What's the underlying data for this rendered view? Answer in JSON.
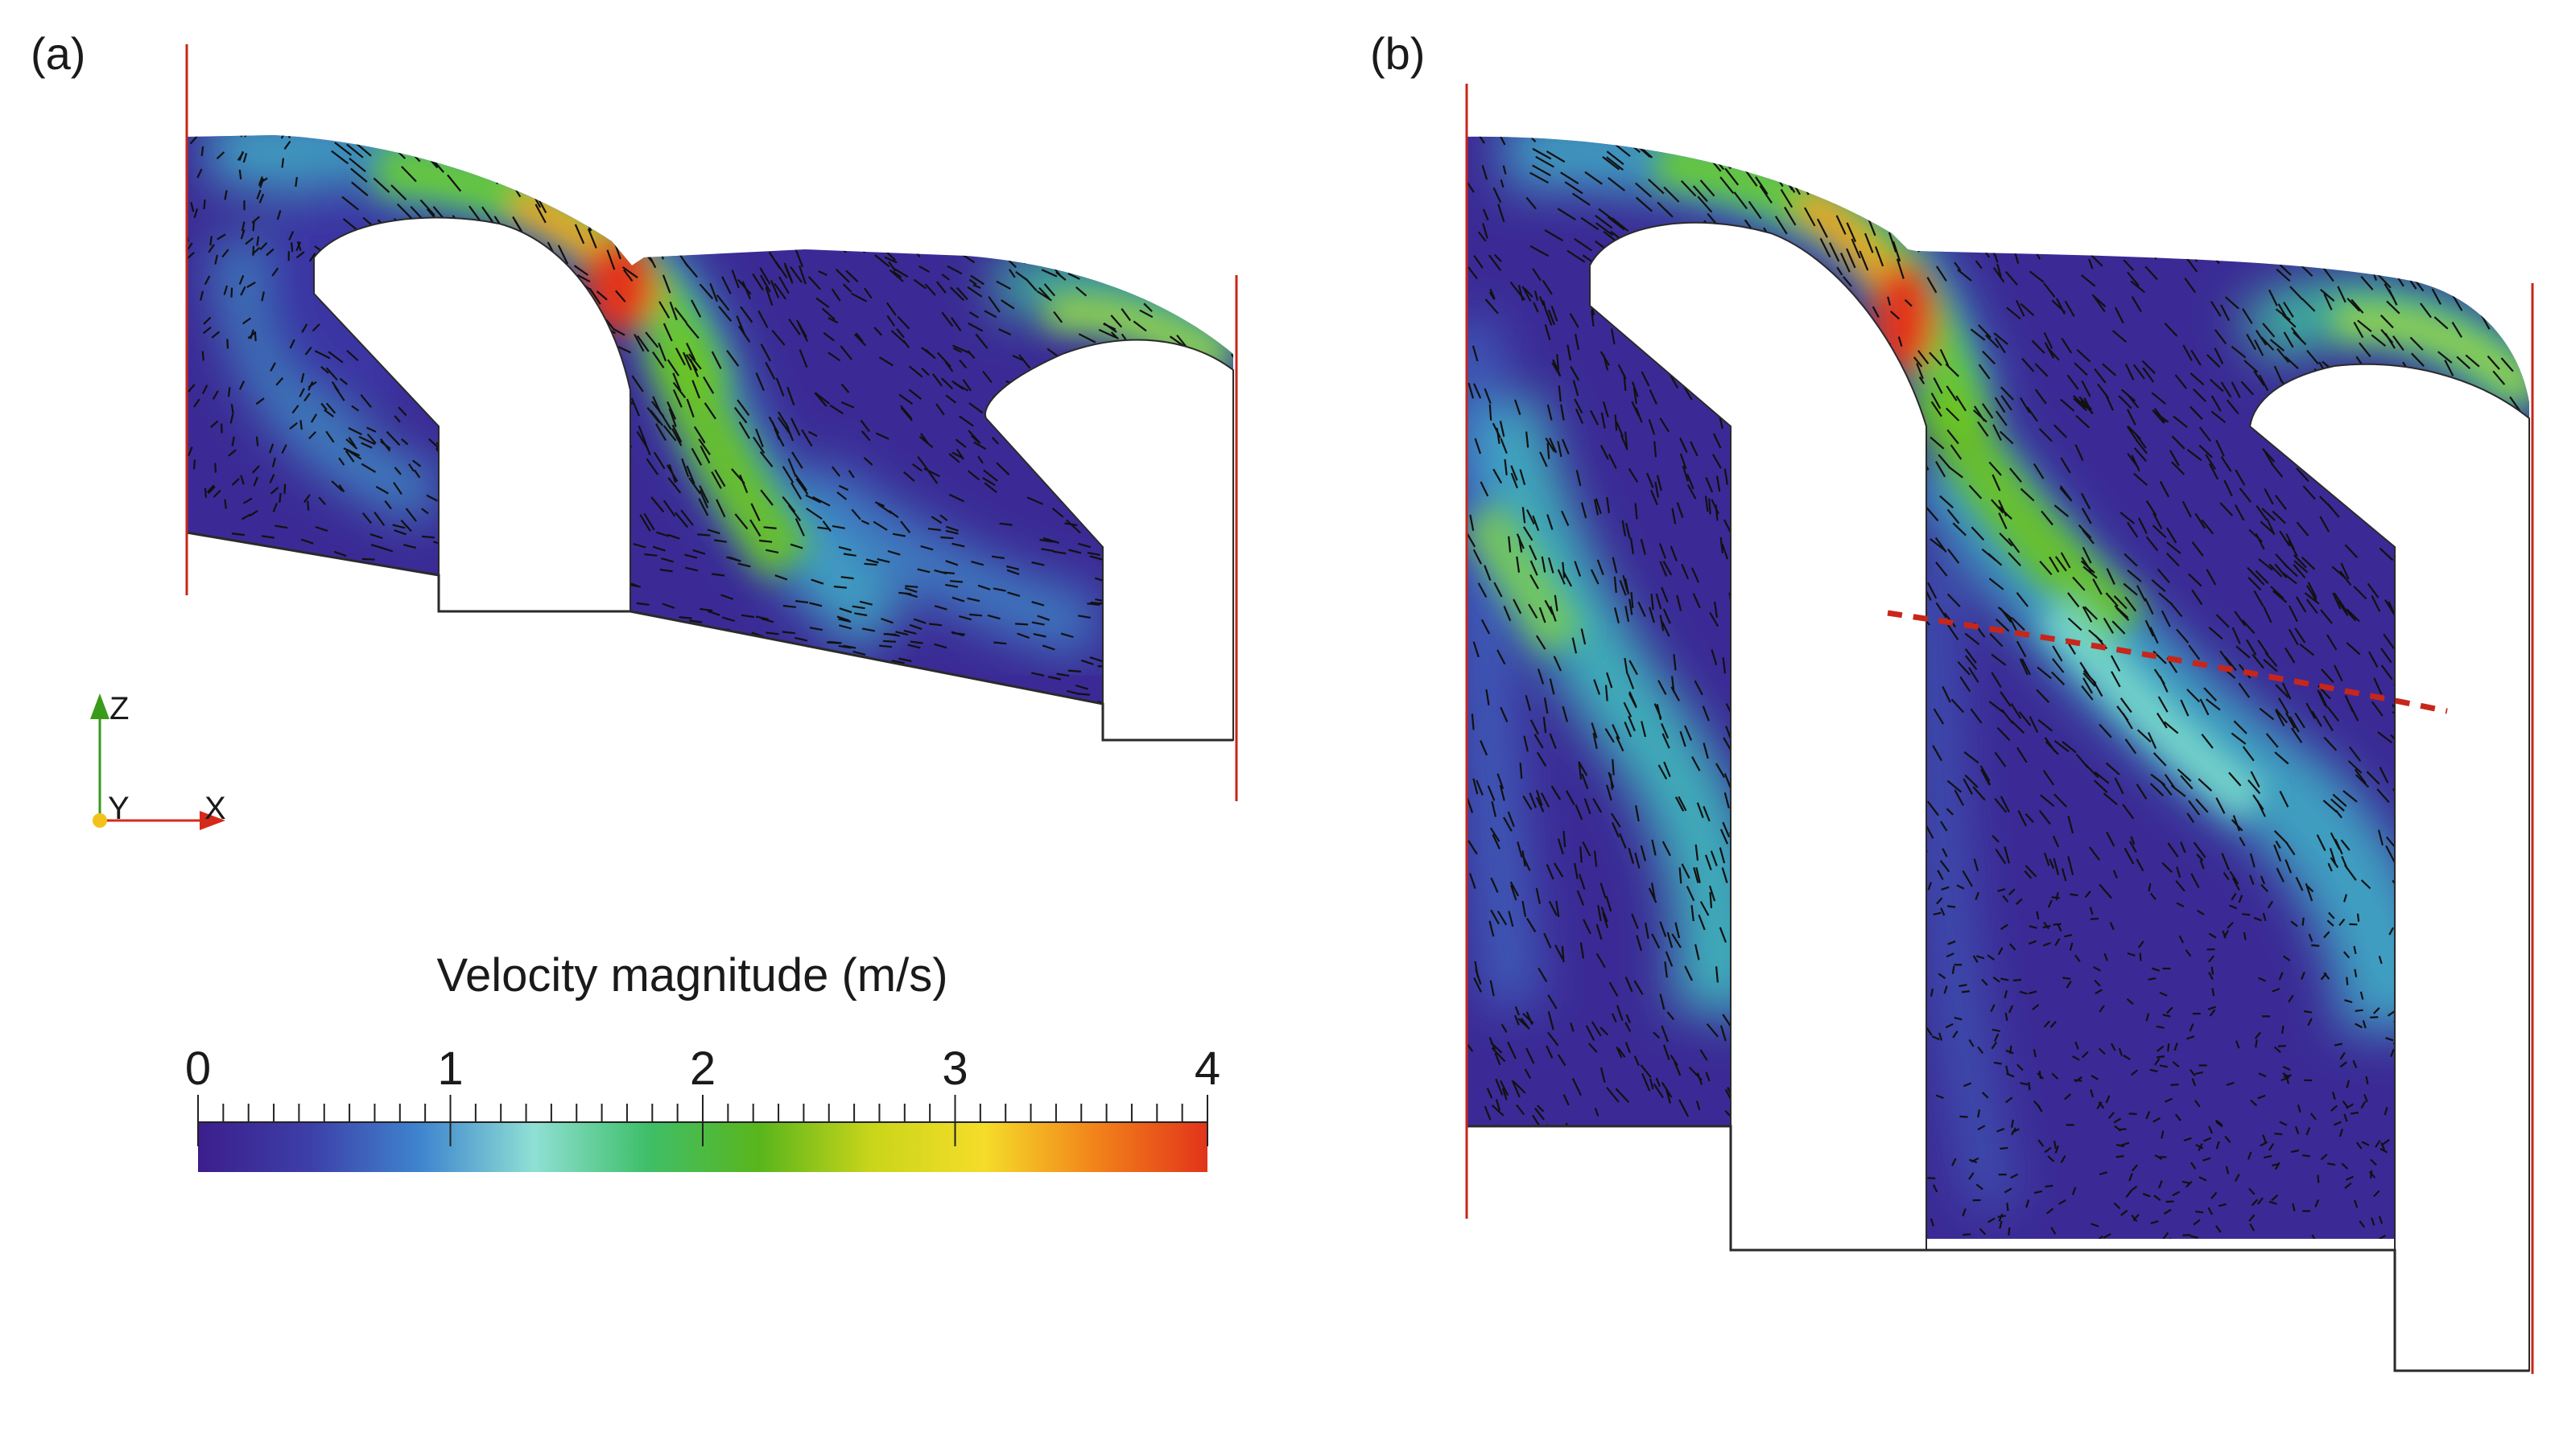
{
  "panels": [
    {
      "label": "(a)"
    },
    {
      "label": "(b)"
    }
  ],
  "triad": {
    "z_label": "Z",
    "y_label": "Y",
    "x_label": "X",
    "z_color": "#3a9a1a",
    "x_color": "#d42a1a",
    "y_color": "#f2c21a"
  },
  "colorbar": {
    "title": "Velocity magnitude (m/s)",
    "ticks": [
      "0",
      "1",
      "2",
      "3",
      "4"
    ],
    "range": [
      0,
      4
    ],
    "colormap": [
      "#3b1e8c",
      "#3d3fa8",
      "#3f86cf",
      "#8fe0d4",
      "#3fbf6a",
      "#59b51c",
      "#c9d51a",
      "#f5dd2a",
      "#f2831a",
      "#e2341a"
    ]
  },
  "colors": {
    "wall_line": "#c8261a",
    "section_line": "#c8261a",
    "outline": "#2a2a2a"
  }
}
